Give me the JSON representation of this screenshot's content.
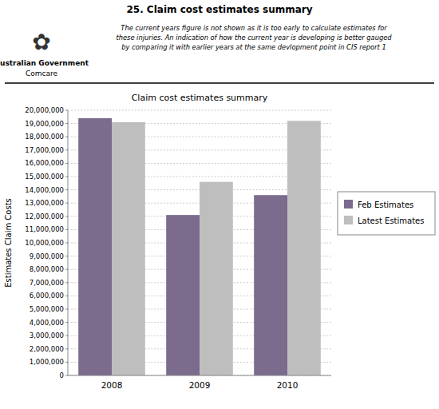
{
  "chart_data": {
    "type": "bar",
    "title": "25. Claim cost estimates summary",
    "subtitle": "Claim cost estimates summary",
    "annotations": [
      "✿",
      "Australian Government",
      "Comcare",
      "The current years figure is not shown as it is too early to calculate estimates for\nthese injuries. An indication of how the current year is developing is better gauged\nby comparing it with earlier years at the same devlopment point in CIS report 1"
    ],
    "y_label": "Estimates Claim Costs",
    "categories": [
      "2008",
      "2009",
      "2010"
    ],
    "series": [
      {
        "name": "Feb Estimates",
        "color": "#7B6B8D",
        "values": [
          19400000,
          12100000,
          13600000
        ]
      },
      {
        "name": "Latest Estimates",
        "color": "#BEBEBE",
        "values": [
          19100000,
          14600000,
          19200000
        ]
      }
    ],
    "ylim": [
      0,
      20000000
    ],
    "yticks": [
      0,
      {
        "value": 1000000,
        "label": "1,000,000"
      },
      {
        "value": 2000000,
        "label": "2,000,000"
      },
      {
        "value": 3000000,
        "label": "3,000,000"
      },
      {
        "value": 4000000,
        "label": "4,000,000"
      },
      {
        "value": 5000000,
        "label": "5,000,000"
      },
      {
        "value": 6000000,
        "label": "6,000,000"
      },
      {
        "value": 7000000,
        "label": "7,000,000"
      },
      {
        "value": 8000000,
        "label": "8,000,000"
      },
      {
        "value": 9000000,
        "label": "9,000,000"
      },
      {
        "value": 10000000,
        "label": "10,000,000"
      },
      {
        "value": 11000000,
        "label": "11,000,000"
      },
      {
        "value": 12000000,
        "label": "12,000,000"
      },
      {
        "value": 13000000,
        "label": "13,000,000"
      },
      {
        "value": 14000000,
        "label": "14,000,000"
      },
      {
        "value": 15000000,
        "label": "15,000,000"
      },
      {
        "value": 16000000,
        "label": "16,000,000"
      },
      {
        "value": 17000000,
        "label": "17,000,000"
      },
      {
        "value": 18000000,
        "label": "18,000,000"
      },
      {
        "value": 19000000,
        "label": "19,000,000"
      },
      {
        "value": 20000000,
        "label": "20,000,000"
      }
    ],
    "grid": true,
    "legend": "right"
  }
}
